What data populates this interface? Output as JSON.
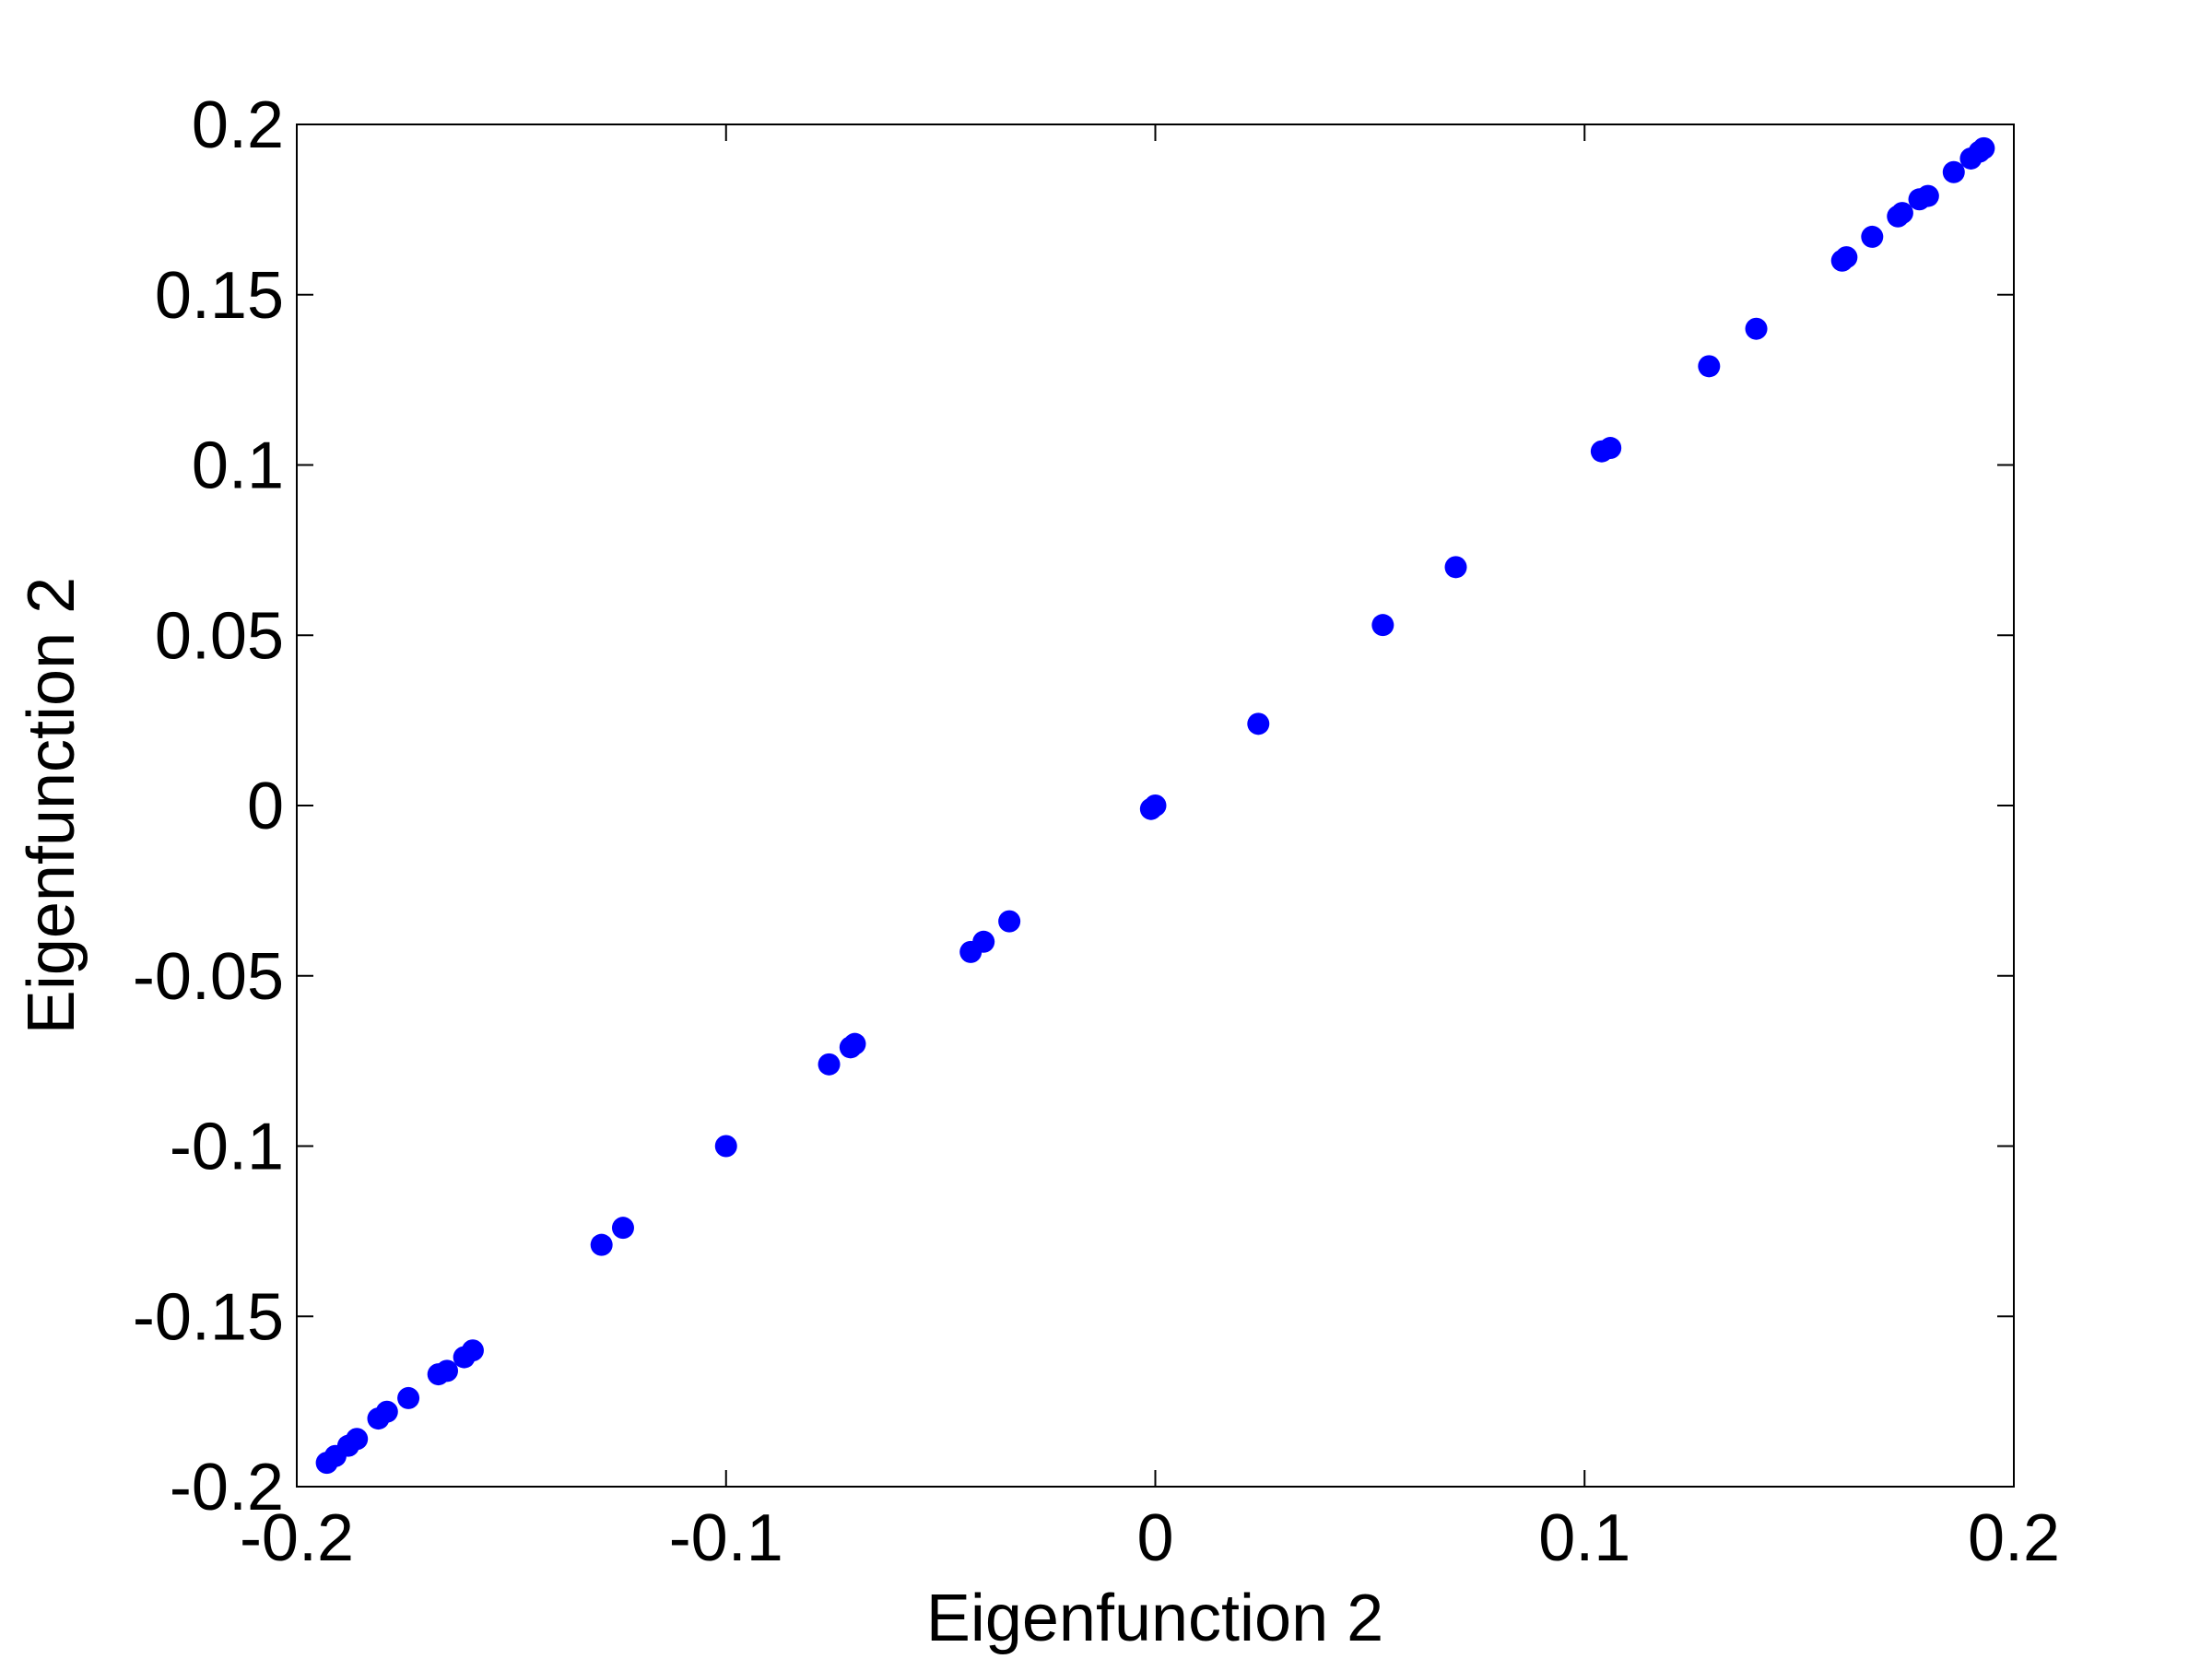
{
  "chart_data": {
    "type": "scatter",
    "title": "",
    "xlabel": "Eigenfunction 2",
    "ylabel": "Eigenfunction 2",
    "xlim": [
      -0.2,
      0.2
    ],
    "ylim": [
      -0.2,
      0.2
    ],
    "x_ticks": [
      -0.2,
      -0.1,
      0,
      0.1,
      0.2
    ],
    "x_tick_labels": [
      "-0.2",
      "-0.1",
      "0",
      "0.1",
      "0.2"
    ],
    "y_ticks": [
      -0.2,
      -0.15,
      -0.1,
      -0.05,
      0,
      0.05,
      0.1,
      0.15,
      0.2
    ],
    "y_tick_labels": [
      "-0.2",
      "-0.15",
      "-0.1",
      "-0.05",
      "0",
      "0.05",
      "0.1",
      "0.15",
      "0.2"
    ],
    "grid": false,
    "marker_color": "#0000ff",
    "series": [
      {
        "x": [
          -0.193,
          -0.191,
          -0.188,
          -0.186,
          -0.181,
          -0.179,
          -0.174,
          -0.167,
          -0.165,
          -0.161,
          -0.159,
          -0.129,
          -0.124,
          -0.1,
          -0.076,
          -0.071,
          -0.07,
          -0.043,
          -0.04,
          -0.034,
          -0.001,
          0.0,
          0.024,
          0.053,
          0.07,
          0.104,
          0.106,
          0.129,
          0.14,
          0.16,
          0.161,
          0.167,
          0.173,
          0.174,
          0.178,
          0.18,
          0.186,
          0.19,
          0.192,
          0.193
        ],
        "y": [
          -0.193,
          -0.191,
          -0.188,
          -0.186,
          -0.18,
          -0.178,
          -0.174,
          -0.167,
          -0.166,
          -0.162,
          -0.16,
          -0.129,
          -0.124,
          -0.1,
          -0.076,
          -0.071,
          -0.07,
          -0.043,
          -0.04,
          -0.034,
          -0.001,
          0.0,
          0.024,
          0.053,
          0.07,
          0.104,
          0.105,
          0.129,
          0.14,
          0.16,
          0.161,
          0.167,
          0.173,
          0.174,
          0.178,
          0.179,
          0.186,
          0.19,
          0.192,
          0.193
        ]
      }
    ]
  }
}
